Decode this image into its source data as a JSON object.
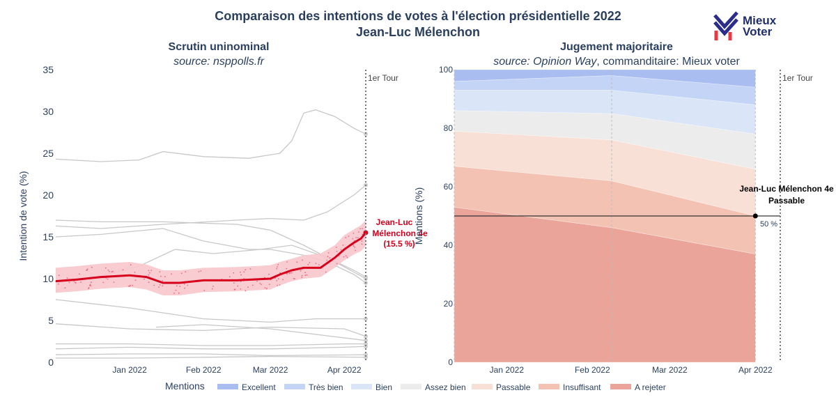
{
  "header": {
    "title_line1": "Comparaison des intentions de votes à l'élection présidentielle 2022",
    "title_line2": "Jean-Luc Mélenchon"
  },
  "logo": {
    "line1": "Mieux",
    "line2": "Voter",
    "accent": "#e63946",
    "navy": "#2a2e8a"
  },
  "left_panel": {
    "title": "Scrutin uninominal",
    "source": "source: nsppolls.fr"
  },
  "right_panel": {
    "title": "Jugement majoritaire",
    "source_italic": "source: Opinion Way",
    "source_rest": ", commanditaire: Mieux voter"
  },
  "legend": {
    "title": "Mentions"
  },
  "chart_data": [
    {
      "type": "line",
      "title": "Scrutin uninominal",
      "ylabel": "Intention de vote (%)",
      "xlabel": "",
      "ylim": [
        0,
        35
      ],
      "yticks": [
        0,
        5,
        10,
        15,
        20,
        25,
        30,
        35
      ],
      "xticks": [
        "Jan 2022",
        "Feb 2022",
        "Mar 2022",
        "Apr 2022"
      ],
      "x_range": [
        "2021-12-01",
        "2022-04-10"
      ],
      "grid": false,
      "annotation_vline": {
        "date": "2022-04-10",
        "label": "1er Tour"
      },
      "highlight_color": "#d6001c",
      "band_color": "#f7c6cc",
      "other_color": "#c8c8c8",
      "highlight": {
        "name": "Jean-Luc Mélenchon 4e",
        "label_line1": "Jean-Luc",
        "label_line2": "Mélenchon 4e",
        "label_line3": "(15.5 %)",
        "x": [
          "2021-12-01",
          "2021-12-10",
          "2021-12-20",
          "2022-01-01",
          "2022-01-08",
          "2022-01-15",
          "2022-01-22",
          "2022-02-01",
          "2022-02-15",
          "2022-03-01",
          "2022-03-05",
          "2022-03-10",
          "2022-03-15",
          "2022-03-22",
          "2022-03-28",
          "2022-04-01",
          "2022-04-05",
          "2022-04-08",
          "2022-04-10"
        ],
        "y": [
          9.7,
          9.9,
          10.2,
          10.4,
          10.2,
          9.5,
          9.5,
          9.8,
          9.8,
          10.0,
          10.5,
          11.0,
          11.3,
          11.3,
          12.5,
          13.5,
          14.3,
          14.8,
          15.5
        ],
        "band_low": [
          8.3,
          8.5,
          8.8,
          9.0,
          8.7,
          8.0,
          8.0,
          8.4,
          8.5,
          8.7,
          9.2,
          9.7,
          10.0,
          10.2,
          11.3,
          12.2,
          12.9,
          13.3,
          13.9
        ],
        "band_high": [
          11.3,
          11.5,
          11.8,
          12.0,
          11.7,
          11.0,
          11.0,
          11.3,
          11.4,
          11.6,
          12.0,
          12.4,
          12.8,
          13.0,
          14.0,
          15.2,
          15.9,
          16.4,
          17.0
        ]
      },
      "others": [
        {
          "x": [
            "2021-12-01",
            "2021-12-20",
            "2022-01-05",
            "2022-01-15",
            "2022-02-01",
            "2022-02-20",
            "2022-03-05",
            "2022-03-10",
            "2022-03-15",
            "2022-03-20",
            "2022-03-28",
            "2022-04-05",
            "2022-04-10"
          ],
          "y": [
            24.3,
            24.0,
            24.2,
            25.2,
            24.6,
            24.4,
            25.0,
            26.5,
            29.8,
            30.2,
            29.4,
            28.0,
            27.3
          ]
        },
        {
          "x": [
            "2021-12-01",
            "2021-12-20",
            "2022-01-15",
            "2022-02-15",
            "2022-03-01",
            "2022-03-15",
            "2022-03-25",
            "2022-04-05",
            "2022-04-10"
          ],
          "y": [
            16.3,
            16.0,
            16.5,
            17.0,
            17.2,
            17.0,
            18.0,
            20.0,
            21.2
          ]
        },
        {
          "x": [
            "2021-12-01",
            "2021-12-20",
            "2022-01-15",
            "2022-02-15",
            "2022-03-01",
            "2022-03-15",
            "2022-03-25",
            "2022-04-05",
            "2022-04-10"
          ],
          "y": [
            17.0,
            16.8,
            16.8,
            16.5,
            15.8,
            14.0,
            12.5,
            11.0,
            10.2
          ]
        },
        {
          "x": [
            "2021-12-01",
            "2021-12-20",
            "2022-01-15",
            "2022-02-01",
            "2022-02-20",
            "2022-03-01",
            "2022-03-15",
            "2022-03-25",
            "2022-04-05",
            "2022-04-10"
          ],
          "y": [
            15.0,
            15.3,
            16.0,
            14.5,
            13.5,
            13.5,
            12.8,
            12.0,
            10.5,
            9.5
          ]
        },
        {
          "x": [
            "2021-12-01",
            "2021-12-15",
            "2022-01-05",
            "2022-01-20",
            "2022-02-05",
            "2022-02-25",
            "2022-03-10",
            "2022-03-25",
            "2022-04-10"
          ],
          "y": [
            8.5,
            10.0,
            11.5,
            13.5,
            13.0,
            13.5,
            14.0,
            12.5,
            10.0
          ]
        },
        {
          "x": [
            "2021-12-01",
            "2022-01-01",
            "2022-02-01",
            "2022-03-01",
            "2022-03-20",
            "2022-04-10"
          ],
          "y": [
            7.5,
            6.5,
            5.2,
            4.8,
            5.2,
            5.2
          ]
        },
        {
          "x": [
            "2021-12-01",
            "2022-01-01",
            "2022-02-01",
            "2022-03-01",
            "2022-04-01",
            "2022-04-10"
          ],
          "y": [
            4.6,
            4.0,
            3.8,
            4.2,
            4.0,
            3.1
          ]
        },
        {
          "x": [
            "2022-01-12",
            "2022-02-01",
            "2022-03-01",
            "2022-04-10"
          ],
          "y": [
            4.2,
            4.5,
            4.0,
            2.6
          ]
        },
        {
          "x": [
            "2021-12-01",
            "2022-01-01",
            "2022-02-01",
            "2022-03-01",
            "2022-04-01",
            "2022-04-10"
          ],
          "y": [
            2.2,
            2.2,
            2.0,
            2.0,
            2.2,
            2.2
          ]
        },
        {
          "x": [
            "2021-12-01",
            "2022-01-01",
            "2022-02-01",
            "2022-03-01",
            "2022-04-01",
            "2022-04-10"
          ],
          "y": [
            1.6,
            1.8,
            1.6,
            1.6,
            1.8,
            1.9
          ]
        },
        {
          "x": [
            "2021-12-01",
            "2022-01-01",
            "2022-02-01",
            "2022-03-01",
            "2022-04-10"
          ],
          "y": [
            0.9,
            1.0,
            1.0,
            0.8,
            0.9
          ]
        },
        {
          "x": [
            "2021-12-01",
            "2022-01-01",
            "2022-02-01",
            "2022-03-01",
            "2022-04-10"
          ],
          "y": [
            0.5,
            0.5,
            0.6,
            0.7,
            0.6
          ]
        }
      ]
    },
    {
      "type": "area",
      "title": "Jugement majoritaire",
      "ylabel": "Mentions (%)",
      "xlabel": "",
      "ylim": [
        0,
        100
      ],
      "yticks": [
        0,
        20,
        40,
        60,
        80,
        100
      ],
      "xticks": [
        "Jan 2022",
        "Feb 2022",
        "Mar 2022",
        "Apr 2022"
      ],
      "x_range": [
        "2021-12-13",
        "2022-04-10"
      ],
      "x": [
        "2021-12-13",
        "2022-02-08",
        "2022-04-01"
      ],
      "grid": false,
      "annotation_vline": {
        "date": "2022-04-10",
        "label": "1er Tour"
      },
      "reference_line": {
        "y": 50,
        "label": "50 %"
      },
      "marker": {
        "x": "2022-04-01",
        "y": 50,
        "label_line1": "Jean-Luc Mélenchon 4e",
        "label_line2": "Passable"
      },
      "series": [
        {
          "name": "A rejeter",
          "color": "#eaa49a",
          "values": [
            53,
            46,
            37
          ]
        },
        {
          "name": "Insuffisant",
          "color": "#f4c2b3",
          "values": [
            14,
            16,
            13
          ]
        },
        {
          "name": "Passable",
          "color": "#f9e0d6",
          "values": [
            12,
            14,
            16
          ]
        },
        {
          "name": "Assez bien",
          "color": "#ececec",
          "values": [
            7,
            9,
            12
          ]
        },
        {
          "name": "Bien",
          "color": "#dbe5f8",
          "values": [
            7,
            8,
            10
          ]
        },
        {
          "name": "Très bien",
          "color": "#c3d4f7",
          "values": [
            3,
            5,
            6
          ]
        },
        {
          "name": "Excellent",
          "color": "#a9bdf0",
          "values": [
            4,
            2,
            6
          ]
        }
      ]
    }
  ]
}
